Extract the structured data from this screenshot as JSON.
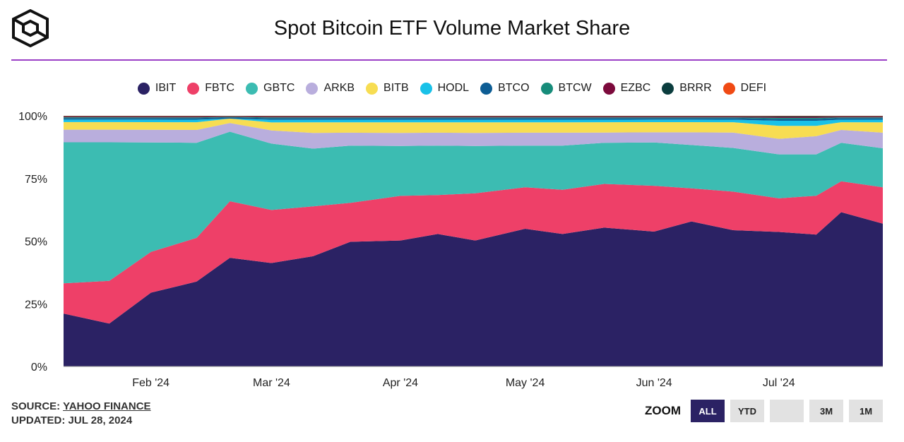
{
  "header": {
    "title": "Spot Bitcoin ETF Volume Market Share"
  },
  "legend": [
    {
      "label": "IBIT",
      "color": "#2b2264"
    },
    {
      "label": "FBTC",
      "color": "#ee4068"
    },
    {
      "label": "GBTC",
      "color": "#3cbcb2"
    },
    {
      "label": "ARKB",
      "color": "#b9aedd"
    },
    {
      "label": "BITB",
      "color": "#f7dd52"
    },
    {
      "label": "HODL",
      "color": "#19c1e8"
    },
    {
      "label": "BTCO",
      "color": "#0d5d94"
    },
    {
      "label": "BTCW",
      "color": "#178c7a"
    },
    {
      "label": "EZBC",
      "color": "#7c0a3c"
    },
    {
      "label": "BRRR",
      "color": "#0b3d3e"
    },
    {
      "label": "DEFI",
      "color": "#f04a14"
    }
  ],
  "footer": {
    "source_prefix": "SOURCE: ",
    "source_link": "YAHOO FINANCE",
    "updated": "UPDATED: JUL 28, 2024"
  },
  "zoom": {
    "label": "ZOOM",
    "buttons": [
      "ALL",
      "YTD",
      "",
      "3M",
      "1M"
    ],
    "active": "ALL"
  },
  "chart_data": {
    "type": "area",
    "stacked": true,
    "normalized": true,
    "title": "Spot Bitcoin ETF Volume Market Share",
    "y_ticks": [
      "0%",
      "25%",
      "50%",
      "75%",
      "100%"
    ],
    "ylim": [
      0,
      100
    ],
    "x_ticks": [
      "Feb '24",
      "Mar '24",
      "Apr '24",
      "May '24",
      "Jun '24",
      "Jul '24"
    ],
    "x_tick_dates": [
      "2024-02-01",
      "2024-03-01",
      "2024-04-01",
      "2024-05-01",
      "2024-06-01",
      "2024-07-01"
    ],
    "xlim": [
      "2024-01-11",
      "2024-07-26"
    ],
    "grid": false,
    "legend_position": "top",
    "x": [
      "2024-01-11",
      "2024-01-22",
      "2024-02-01",
      "2024-02-12",
      "2024-02-20",
      "2024-03-01",
      "2024-03-11",
      "2024-03-20",
      "2024-04-01",
      "2024-04-10",
      "2024-04-19",
      "2024-05-01",
      "2024-05-10",
      "2024-05-20",
      "2024-06-01",
      "2024-06-10",
      "2024-06-20",
      "2024-07-01",
      "2024-07-10",
      "2024-07-16",
      "2024-07-26"
    ],
    "series": [
      {
        "name": "IBIT",
        "values": [
          21,
          17,
          29,
          33,
          25,
          39,
          42,
          48,
          48,
          51,
          48,
          53,
          51,
          54,
          53,
          57,
          53,
          52,
          51,
          60,
          55
        ]
      },
      {
        "name": "FBTC",
        "values": [
          12,
          17,
          16,
          17,
          13,
          20,
          19,
          15,
          17,
          15,
          18,
          16,
          17,
          17,
          18,
          13,
          15,
          13,
          15,
          12,
          14
        ]
      },
      {
        "name": "GBTC",
        "values": [
          56,
          55,
          43,
          37,
          16,
          25,
          22,
          22,
          19,
          19,
          18,
          16,
          17,
          16,
          17,
          17,
          17,
          17,
          16,
          15,
          15
        ]
      },
      {
        "name": "ARKB",
        "values": [
          5,
          5,
          5,
          5,
          2,
          5,
          6,
          5,
          5,
          5,
          5,
          5,
          5,
          4,
          4,
          5,
          6,
          6,
          7,
          5,
          6
        ]
      },
      {
        "name": "BITB",
        "values": [
          3,
          3,
          3,
          3,
          1,
          3,
          4,
          4,
          4,
          4,
          4,
          4,
          4,
          4,
          4,
          4,
          4,
          5,
          4,
          3,
          4
        ]
      },
      {
        "name": "HODL",
        "values": [
          1,
          1,
          1,
          1,
          0,
          1,
          1,
          1,
          1,
          1,
          1,
          1,
          1,
          1,
          1,
          1,
          1,
          2,
          2,
          1,
          1
        ]
      },
      {
        "name": "BTCO",
        "values": [
          0.6,
          0.6,
          0.6,
          0.6,
          0.3,
          0.6,
          0.6,
          0.6,
          0.6,
          0.6,
          0.6,
          0.6,
          0.6,
          0.6,
          0.6,
          0.6,
          0.6,
          0.7,
          0.7,
          0.6,
          0.6
        ]
      },
      {
        "name": "BTCW",
        "values": [
          0.3,
          0.3,
          0.3,
          0.3,
          0.1,
          0.3,
          0.3,
          0.3,
          0.3,
          0.3,
          0.3,
          0.3,
          0.3,
          0.3,
          0.3,
          0.3,
          0.3,
          0.4,
          0.4,
          0.3,
          0.3
        ]
      },
      {
        "name": "EZBC",
        "values": [
          0.3,
          0.3,
          0.3,
          0.3,
          0.1,
          0.3,
          0.3,
          0.3,
          0.3,
          0.3,
          0.3,
          0.3,
          0.3,
          0.3,
          0.3,
          0.3,
          0.3,
          0.4,
          0.4,
          0.3,
          0.3
        ]
      },
      {
        "name": "BRRR",
        "values": [
          0.2,
          0.2,
          0.2,
          0.2,
          0.1,
          0.2,
          0.2,
          0.2,
          0.2,
          0.2,
          0.2,
          0.2,
          0.2,
          0.2,
          0.2,
          0.2,
          0.2,
          0.3,
          0.3,
          0.2,
          0.2
        ]
      },
      {
        "name": "DEFI",
        "values": [
          0.1,
          0.1,
          0.1,
          0.1,
          0.05,
          0.1,
          0.1,
          0.1,
          0.1,
          0.1,
          0.1,
          0.1,
          0.1,
          0.1,
          0.1,
          0.1,
          0.1,
          0.1,
          0.1,
          0.1,
          0.1
        ]
      }
    ]
  }
}
